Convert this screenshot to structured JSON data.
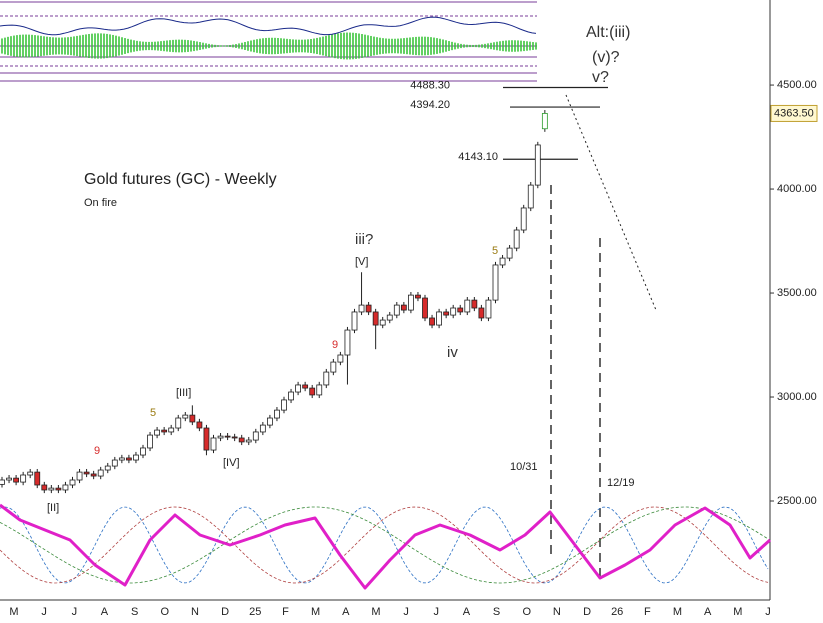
{
  "chart_data": {
    "type": "candlestick",
    "title": "Gold futures (GC) - Weekly",
    "subtitle": "On fire",
    "categories": [
      "M",
      "J",
      "J",
      "A",
      "S",
      "O",
      "N",
      "D",
      "25",
      "F",
      "M",
      "A",
      "M",
      "J",
      "J",
      "A",
      "S",
      "O",
      "N",
      "D",
      "26",
      "F",
      "M",
      "A",
      "M",
      "J"
    ],
    "open": [
      2580,
      2601,
      2610,
      2591,
      2625,
      2639,
      2577,
      2553,
      2562,
      2553,
      2577,
      2601,
      2639,
      2630,
      2620,
      2649,
      2668,
      2697,
      2707,
      2697,
      2721,
      2755,
      2817,
      2841,
      2832,
      2851,
      2899,
      2913,
      2880,
      2851,
      2745,
      2803,
      2812,
      2808,
      2803,
      2784,
      2793,
      2832,
      2865,
      2899,
      2937,
      2986,
      3024,
      3058,
      3043,
      3010,
      3058,
      3120,
      3168,
      3202,
      3322,
      3409,
      3442,
      3409,
      3346,
      3370,
      3394,
      3442,
      3418,
      3490,
      3476,
      3380,
      3346,
      3409,
      3394,
      3428,
      3409,
      3466,
      3428,
      3380,
      3466,
      3635,
      3668,
      3716,
      3803,
      3909,
      4019,
      4290
    ],
    "high": [
      2616,
      2625,
      2625,
      2640,
      2654,
      2654,
      2592,
      2577,
      2577,
      2592,
      2616,
      2654,
      2654,
      2645,
      2664,
      2683,
      2712,
      2722,
      2722,
      2736,
      2770,
      2832,
      2856,
      2856,
      2866,
      2914,
      2928,
      2960,
      2895,
      2866,
      2818,
      2827,
      2827,
      2823,
      2818,
      2808,
      2847,
      2880,
      2914,
      2952,
      3001,
      3039,
      3073,
      3073,
      3058,
      3073,
      3135,
      3183,
      3217,
      3337,
      3424,
      3600,
      3457,
      3424,
      3385,
      3409,
      3457,
      3457,
      3505,
      3505,
      3491,
      3395,
      3424,
      3424,
      3443,
      3443,
      3481,
      3481,
      3443,
      3481,
      3650,
      3683,
      3731,
      3818,
      3924,
      4034,
      4227,
      4380
    ],
    "low": [
      2565,
      2586,
      2576,
      2576,
      2610,
      2562,
      2538,
      2538,
      2538,
      2538,
      2562,
      2586,
      2615,
      2605,
      2605,
      2634,
      2653,
      2682,
      2682,
      2682,
      2706,
      2740,
      2802,
      2817,
      2817,
      2836,
      2884,
      2865,
      2836,
      2720,
      2730,
      2788,
      2793,
      2788,
      2769,
      2769,
      2778,
      2817,
      2850,
      2884,
      2922,
      2971,
      3009,
      3028,
      2995,
      2995,
      3043,
      3105,
      3153,
      3060,
      3307,
      3394,
      3394,
      3230,
      3331,
      3355,
      3379,
      3403,
      3403,
      3461,
      3365,
      3331,
      3331,
      3379,
      3379,
      3394,
      3394,
      3413,
      3365,
      3365,
      3451,
      3620,
      3653,
      3701,
      3788,
      3894,
      4004,
      4275
    ],
    "close": [
      2601,
      2610,
      2591,
      2625,
      2639,
      2577,
      2553,
      2562,
      2553,
      2577,
      2601,
      2639,
      2630,
      2620,
      2649,
      2668,
      2697,
      2707,
      2697,
      2721,
      2755,
      2817,
      2841,
      2832,
      2851,
      2899,
      2913,
      2880,
      2851,
      2745,
      2803,
      2812,
      2808,
      2803,
      2784,
      2793,
      2832,
      2865,
      2899,
      2937,
      2986,
      3024,
      3058,
      3043,
      3010,
      3058,
      3120,
      3168,
      3202,
      3322,
      3409,
      3442,
      3409,
      3346,
      3370,
      3394,
      3442,
      3418,
      3490,
      3476,
      3380,
      3346,
      3409,
      3394,
      3428,
      3409,
      3466,
      3428,
      3380,
      3466,
      3635,
      3668,
      3716,
      3803,
      3909,
      4019,
      4212,
      4363.5
    ],
    "up_color": "#ffffff",
    "down_color": "#d62b2b",
    "ylim": [
      2024,
      4909
    ],
    "yticks": [
      {
        "value": 2500,
        "label": "2500.00"
      },
      {
        "value": 3000,
        "label": "3000.00"
      },
      {
        "value": 3500,
        "label": "3500.00"
      },
      {
        "value": 4000,
        "label": "4000.00"
      },
      {
        "value": 4500,
        "label": "4500.00"
      }
    ],
    "levels": [
      {
        "value": 4488.3,
        "label": "4488.30"
      },
      {
        "value": 4394.2,
        "label": "4394.20"
      },
      {
        "value": 4143.1,
        "label": "4143.10"
      }
    ],
    "last_price": {
      "value": 4363.5,
      "label": "4363.50"
    },
    "annotations": [
      "Alt:(iii)",
      "(v)?",
      "v?",
      "iii?",
      "[V]",
      "iv",
      "5",
      "9",
      "[III]",
      "5",
      "9",
      "[IV]",
      "[II]",
      "10/31",
      "12/19"
    ]
  }
}
